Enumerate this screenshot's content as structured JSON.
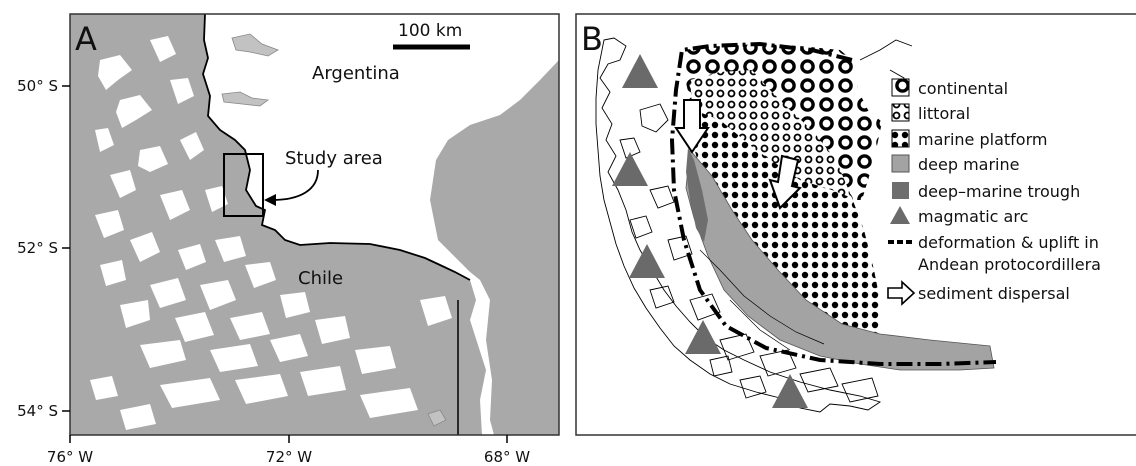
{
  "panel_a": {
    "panel_label": "A",
    "scale_bar": "100 km",
    "country_argentina": "Argentina",
    "country_chile": "Chile",
    "study_area_label": "Study area",
    "lat_labels": [
      "50° S",
      "52° S",
      "54° S"
    ],
    "lon_labels": [
      "76° W",
      "72° W",
      "68° W"
    ]
  },
  "panel_b": {
    "panel_label": "B",
    "legend": [
      {
        "label": "continental",
        "symbol": "continental"
      },
      {
        "label": "littoral",
        "symbol": "littoral"
      },
      {
        "label": "marine platform",
        "symbol": "marine-platform"
      },
      {
        "label": "deep marine",
        "symbol": "deep-marine"
      },
      {
        "label": "deep–marine trough",
        "symbol": "deep-marine-trough"
      },
      {
        "label": "magmatic arc",
        "symbol": "magmatic-arc"
      },
      {
        "label": "deformation & uplift in",
        "symbol": "deformation-line"
      },
      {
        "label": "Andean protocordillera",
        "symbol": "none"
      },
      {
        "label": "sediment dispersal",
        "symbol": "sediment-arrow"
      }
    ]
  },
  "colors": {
    "land_gray": "#a9a9a9",
    "deep_marine": "#a3a3a3",
    "trough": "#6e6e6e",
    "arc": "#6a6a6a"
  }
}
